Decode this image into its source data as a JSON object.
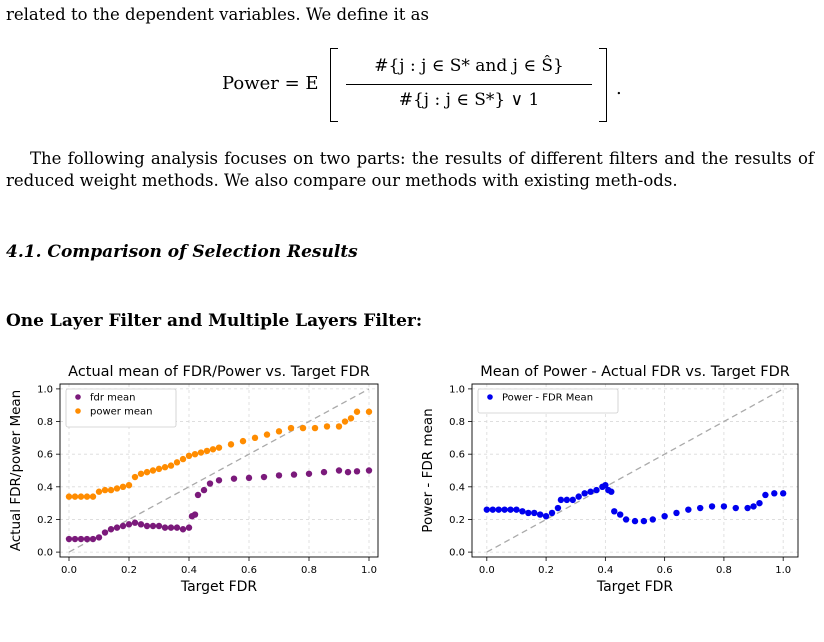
{
  "intro_line": "related to the dependent variables. We define it as",
  "equation": {
    "lhs": "Power = E",
    "numerator": "#{j : j ∈ S* and j ∈ Ŝ}",
    "denominator": "#{j : j ∈ S*} ∨ 1",
    "end": "."
  },
  "paragraph": "The following analysis focuses on two parts: the results of different filters and the results of reduced weight methods. We also compare our methods with existing meth-ods.",
  "section_heading": "4.1. Comparison of Selection Results",
  "subheading": "One Layer Filter and Multiple Layers Filter:",
  "colors": {
    "fdr": "#7b1a7b",
    "power": "#ff8c00",
    "diff": "#0000ee",
    "diag": "#aaaaaa"
  },
  "chart_data": [
    {
      "type": "scatter",
      "title": "Actual mean of FDR/Power vs. Target FDR",
      "xlabel": "Target FDR",
      "ylabel": "Actual FDR/power Mean",
      "xlim": [
        -0.03,
        1.03
      ],
      "ylim": [
        -0.03,
        1.03
      ],
      "xticks": [
        "0.0",
        "0.2",
        "0.4",
        "0.6",
        "0.8",
        "1.0"
      ],
      "yticks": [
        "0.0",
        "0.2",
        "0.4",
        "0.6",
        "0.8",
        "1.0"
      ],
      "grid": true,
      "legend_position": "top-left",
      "reference_line": "y = x (dashed)",
      "series": [
        {
          "name": "fdr mean",
          "color": "#7b1a7b",
          "points": [
            [
              0.0,
              0.08
            ],
            [
              0.02,
              0.08
            ],
            [
              0.04,
              0.08
            ],
            [
              0.06,
              0.08
            ],
            [
              0.08,
              0.08
            ],
            [
              0.1,
              0.09
            ],
            [
              0.12,
              0.12
            ],
            [
              0.14,
              0.14
            ],
            [
              0.16,
              0.15
            ],
            [
              0.18,
              0.16
            ],
            [
              0.2,
              0.17
            ],
            [
              0.22,
              0.18
            ],
            [
              0.24,
              0.17
            ],
            [
              0.26,
              0.16
            ],
            [
              0.28,
              0.16
            ],
            [
              0.3,
              0.16
            ],
            [
              0.32,
              0.15
            ],
            [
              0.34,
              0.15
            ],
            [
              0.36,
              0.15
            ],
            [
              0.38,
              0.14
            ],
            [
              0.4,
              0.15
            ],
            [
              0.41,
              0.22
            ],
            [
              0.42,
              0.23
            ],
            [
              0.43,
              0.35
            ],
            [
              0.45,
              0.38
            ],
            [
              0.47,
              0.42
            ],
            [
              0.5,
              0.44
            ],
            [
              0.55,
              0.45
            ],
            [
              0.6,
              0.455
            ],
            [
              0.65,
              0.46
            ],
            [
              0.7,
              0.47
            ],
            [
              0.75,
              0.475
            ],
            [
              0.8,
              0.48
            ],
            [
              0.85,
              0.49
            ],
            [
              0.9,
              0.5
            ],
            [
              0.93,
              0.49
            ],
            [
              0.96,
              0.495
            ],
            [
              1.0,
              0.5
            ]
          ]
        },
        {
          "name": "power mean",
          "color": "#ff8c00",
          "points": [
            [
              0.0,
              0.34
            ],
            [
              0.02,
              0.34
            ],
            [
              0.04,
              0.34
            ],
            [
              0.06,
              0.34
            ],
            [
              0.08,
              0.34
            ],
            [
              0.1,
              0.37
            ],
            [
              0.12,
              0.38
            ],
            [
              0.14,
              0.38
            ],
            [
              0.16,
              0.39
            ],
            [
              0.18,
              0.4
            ],
            [
              0.2,
              0.41
            ],
            [
              0.22,
              0.46
            ],
            [
              0.24,
              0.48
            ],
            [
              0.26,
              0.49
            ],
            [
              0.28,
              0.5
            ],
            [
              0.3,
              0.51
            ],
            [
              0.32,
              0.52
            ],
            [
              0.34,
              0.53
            ],
            [
              0.36,
              0.55
            ],
            [
              0.38,
              0.57
            ],
            [
              0.4,
              0.59
            ],
            [
              0.42,
              0.6
            ],
            [
              0.44,
              0.61
            ],
            [
              0.46,
              0.62
            ],
            [
              0.48,
              0.63
            ],
            [
              0.5,
              0.64
            ],
            [
              0.54,
              0.66
            ],
            [
              0.58,
              0.68
            ],
            [
              0.62,
              0.7
            ],
            [
              0.66,
              0.72
            ],
            [
              0.7,
              0.74
            ],
            [
              0.74,
              0.76
            ],
            [
              0.78,
              0.76
            ],
            [
              0.82,
              0.76
            ],
            [
              0.86,
              0.77
            ],
            [
              0.9,
              0.77
            ],
            [
              0.92,
              0.8
            ],
            [
              0.94,
              0.82
            ],
            [
              0.96,
              0.86
            ],
            [
              1.0,
              0.86
            ]
          ]
        }
      ]
    },
    {
      "type": "scatter",
      "title": "Mean of Power - Actual FDR vs. Target FDR",
      "xlabel": "Target FDR",
      "ylabel": "Power - FDR mean",
      "xlim": [
        -0.05,
        1.05
      ],
      "ylim": [
        -0.03,
        1.03
      ],
      "xticks": [
        "0.0",
        "0.2",
        "0.4",
        "0.6",
        "0.8",
        "1.0"
      ],
      "yticks": [
        "0.0",
        "0.2",
        "0.4",
        "0.6",
        "0.8",
        "1.0"
      ],
      "grid": true,
      "legend_position": "top-left",
      "reference_line": "y = x (dashed)",
      "series": [
        {
          "name": "Power - FDR Mean",
          "color": "#0000ee",
          "points": [
            [
              0.0,
              0.26
            ],
            [
              0.02,
              0.26
            ],
            [
              0.04,
              0.26
            ],
            [
              0.06,
              0.26
            ],
            [
              0.08,
              0.26
            ],
            [
              0.1,
              0.26
            ],
            [
              0.12,
              0.25
            ],
            [
              0.14,
              0.24
            ],
            [
              0.16,
              0.24
            ],
            [
              0.18,
              0.23
            ],
            [
              0.2,
              0.22
            ],
            [
              0.22,
              0.24
            ],
            [
              0.24,
              0.27
            ],
            [
              0.25,
              0.32
            ],
            [
              0.27,
              0.32
            ],
            [
              0.29,
              0.32
            ],
            [
              0.31,
              0.34
            ],
            [
              0.33,
              0.36
            ],
            [
              0.35,
              0.37
            ],
            [
              0.37,
              0.38
            ],
            [
              0.39,
              0.4
            ],
            [
              0.4,
              0.41
            ],
            [
              0.41,
              0.38
            ],
            [
              0.42,
              0.37
            ],
            [
              0.43,
              0.25
            ],
            [
              0.45,
              0.23
            ],
            [
              0.47,
              0.2
            ],
            [
              0.5,
              0.19
            ],
            [
              0.53,
              0.19
            ],
            [
              0.56,
              0.2
            ],
            [
              0.6,
              0.22
            ],
            [
              0.64,
              0.24
            ],
            [
              0.68,
              0.26
            ],
            [
              0.72,
              0.27
            ],
            [
              0.76,
              0.28
            ],
            [
              0.8,
              0.28
            ],
            [
              0.84,
              0.27
            ],
            [
              0.88,
              0.27
            ],
            [
              0.9,
              0.28
            ],
            [
              0.92,
              0.3
            ],
            [
              0.94,
              0.35
            ],
            [
              0.97,
              0.36
            ],
            [
              1.0,
              0.36
            ]
          ]
        }
      ]
    }
  ]
}
